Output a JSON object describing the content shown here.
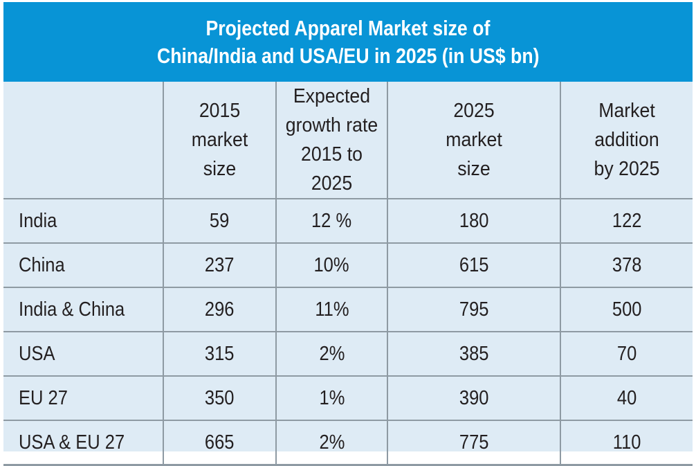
{
  "title": {
    "line1": "Projected Apparel Market size of",
    "line2": "China/India and USA/EU in 2025 (in US$ bn)"
  },
  "colors": {
    "title_background": "#0894d6",
    "title_text": "#ffffff",
    "table_background": "#deebf5",
    "grid_lines": "#8e9aa3",
    "cell_text": "#231f20"
  },
  "table": {
    "columns": [
      {
        "lines": [
          ""
        ]
      },
      {
        "lines": [
          "2015",
          "market",
          "size"
        ]
      },
      {
        "lines": [
          "Expected",
          "growth rate",
          "2015 to 2025"
        ]
      },
      {
        "lines": [
          "2025",
          "market",
          "size"
        ]
      },
      {
        "lines": [
          "Market",
          "addition",
          "by 2025"
        ]
      }
    ],
    "rows": [
      {
        "region": "India",
        "market_2015": "59",
        "growth_rate": "12 %",
        "market_2025": "180",
        "addition": "122"
      },
      {
        "region": "China",
        "market_2015": "237",
        "growth_rate": "10%",
        "market_2025": "615",
        "addition": "378"
      },
      {
        "region": "India & China",
        "market_2015": "296",
        "growth_rate": "11%",
        "market_2025": "795",
        "addition": "500"
      },
      {
        "region": "USA",
        "market_2015": "315",
        "growth_rate": "2%",
        "market_2025": "385",
        "addition": "70"
      },
      {
        "region": "EU 27",
        "market_2015": "350",
        "growth_rate": "1%",
        "market_2025": "390",
        "addition": "40"
      },
      {
        "region": "USA & EU 27",
        "market_2015": "665",
        "growth_rate": "2%",
        "market_2025": "775",
        "addition": "110"
      }
    ]
  }
}
